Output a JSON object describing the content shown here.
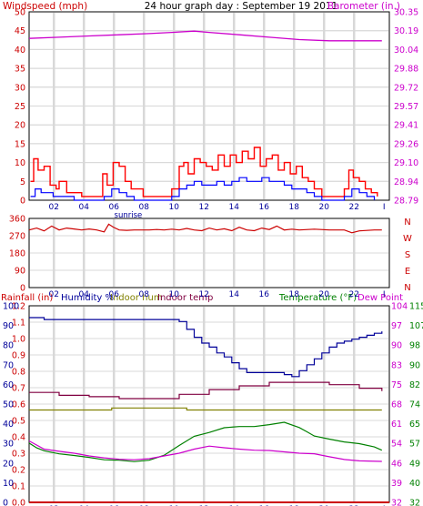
{
  "header": {
    "left_title": "Windspeed (mph)",
    "center_title": "24 hour graph day : September 19 2011",
    "right_title": "Barometer (in.)"
  },
  "legend_lower": {
    "rain": "Rainfall (in)",
    "humidity": "Humidity %",
    "indoor_hum": "Indoor hum",
    "indoor_temp": "Indoor temp",
    "temperature": "Temperature (°F)",
    "dew_point": "Dew Point"
  },
  "colors": {
    "wind": "#ff0000",
    "gust": "#ff0000",
    "avg_wind": "#0000ff",
    "barometer": "#cc00cc",
    "direction": "#cc0000",
    "rain": "#cc0000",
    "humidity": "#000099",
    "indoor_hum": "#808000",
    "indoor_temp": "#800040",
    "temperature": "#008000",
    "dew_point": "#cc00cc",
    "grid": "#d8d8d8"
  },
  "chart_data": [
    {
      "type": "line",
      "name": "Wind and barometer",
      "x_ticks": [
        "02",
        "04",
        "06",
        "08",
        "10",
        "12",
        "14",
        "16",
        "18",
        "20",
        "22",
        "I"
      ],
      "x_note": "sunrise",
      "y_left": {
        "label": "Windspeed (mph)",
        "ylim": [
          0,
          50
        ],
        "ticks": [
          "0",
          "5",
          "10",
          "15",
          "20",
          "25",
          "30",
          "35",
          "40",
          "45",
          "50"
        ]
      },
      "y_right": {
        "label": "Barometer (in.)",
        "ylim": [
          28.79,
          30.35
        ],
        "ticks": [
          "28.79",
          "28.94",
          "29.10",
          "29.26",
          "29.41",
          "29.57",
          "29.72",
          "29.88",
          "30.04",
          "30.19",
          "30.35"
        ]
      },
      "series": [
        {
          "key": "gust",
          "axis": "left",
          "x": [
            0.1,
            0.3,
            0.6,
            1.0,
            1.4,
            1.8,
            2.0,
            2.5,
            3.0,
            3.5,
            4.0,
            4.5,
            4.9,
            5.2,
            5.6,
            6.0,
            6.4,
            6.8,
            7.2,
            7.6,
            8.0,
            8.5,
            9.0,
            9.5,
            10.0,
            10.3,
            10.6,
            11.0,
            11.4,
            11.8,
            12.2,
            12.6,
            13.0,
            13.4,
            13.8,
            14.2,
            14.6,
            15.0,
            15.4,
            15.8,
            16.2,
            16.6,
            17.0,
            17.4,
            17.8,
            18.2,
            18.6,
            19.0,
            19.5,
            20.0,
            20.5,
            21.0,
            21.3,
            21.6,
            22.0,
            22.4,
            22.8,
            23.2
          ],
          "y": [
            5,
            11,
            8,
            9,
            4,
            3,
            5,
            2,
            2,
            1,
            1,
            1,
            7,
            4,
            10,
            9,
            5,
            3,
            3,
            1,
            1,
            1,
            1,
            3,
            9,
            10,
            7,
            11,
            10,
            9,
            8,
            12,
            9,
            12,
            10,
            13,
            11,
            14,
            9,
            11,
            12,
            8,
            10,
            7,
            9,
            6,
            5,
            3,
            1,
            1,
            1,
            3,
            8,
            6,
            5,
            3,
            2,
            1
          ]
        },
        {
          "key": "avg_wind",
          "axis": "left",
          "x": [
            0.1,
            0.4,
            0.8,
            1.2,
            1.6,
            2.0,
            2.5,
            3.0,
            3.5,
            4.0,
            4.5,
            5.0,
            5.5,
            6.0,
            6.5,
            7.0,
            7.5,
            8.0,
            8.5,
            9.0,
            9.5,
            10.0,
            10.5,
            11.0,
            11.5,
            12.0,
            12.5,
            13.0,
            13.5,
            14.0,
            14.5,
            15.0,
            15.5,
            16.0,
            16.5,
            17.0,
            17.5,
            18.0,
            18.5,
            19.0,
            19.5,
            20.0,
            20.5,
            21.0,
            21.5,
            22.0,
            22.5,
            23.0
          ],
          "y": [
            1,
            3,
            2,
            2,
            1,
            1,
            1,
            0,
            0,
            0,
            0,
            1,
            3,
            2,
            1,
            0,
            0,
            0,
            0,
            0,
            1,
            3,
            4,
            5,
            4,
            4,
            5,
            4,
            5,
            6,
            5,
            5,
            6,
            5,
            5,
            4,
            3,
            3,
            2,
            1,
            0,
            0,
            0,
            1,
            3,
            2,
            1,
            0
          ]
        },
        {
          "key": "barometer",
          "axis": "right",
          "x": [
            0,
            2,
            4,
            6,
            8,
            9.5,
            11,
            12,
            14,
            16,
            18,
            20,
            22,
            23.5
          ],
          "y": [
            30.13,
            30.14,
            30.15,
            30.16,
            30.17,
            30.18,
            30.19,
            30.18,
            30.16,
            30.14,
            30.12,
            30.11,
            30.11,
            30.11
          ]
        }
      ]
    },
    {
      "type": "line",
      "name": "Wind direction",
      "x_ticks": [
        "02",
        "04",
        "06",
        "08",
        "10",
        "12",
        "14",
        "16",
        "18",
        "20",
        "22",
        "I"
      ],
      "y_left": {
        "ylim": [
          0,
          360
        ],
        "ticks": [
          "0",
          "90",
          "180",
          "270",
          "360"
        ]
      },
      "y_right_labels": [
        "N",
        "W",
        "S",
        "E",
        "N"
      ],
      "series": [
        {
          "key": "direction",
          "x": [
            0,
            0.5,
            1,
            1.5,
            2,
            2.5,
            3,
            3.5,
            4,
            4.5,
            5,
            5.3,
            5.6,
            6,
            6.5,
            7,
            7.5,
            8,
            8.5,
            9,
            9.5,
            10,
            10.5,
            11,
            11.5,
            12,
            12.5,
            13,
            13.5,
            14,
            14.5,
            15,
            15.5,
            16,
            16.5,
            17,
            17.5,
            18,
            19,
            20,
            21,
            21.5,
            22,
            23,
            23.5
          ],
          "y": [
            300,
            310,
            295,
            320,
            300,
            310,
            305,
            300,
            305,
            300,
            290,
            330,
            315,
            300,
            298,
            300,
            300,
            300,
            302,
            300,
            304,
            300,
            308,
            300,
            296,
            310,
            300,
            306,
            296,
            314,
            300,
            296,
            310,
            302,
            320,
            300,
            304,
            300,
            304,
            300,
            300,
            285,
            295,
            300,
            300
          ]
        }
      ]
    },
    {
      "type": "line",
      "name": "Temperature, humidity and rain",
      "x_ticks": [
        "02",
        "04",
        "06",
        "08",
        "10",
        "12",
        "14",
        "16",
        "18",
        "20",
        "22",
        "I"
      ],
      "x_note": "sunrise",
      "y_left": {
        "label": "Rainfall (in)",
        "ylim": [
          0,
          1.2
        ],
        "ticks": [
          "0.0",
          "0.1",
          "0.2",
          "0.3",
          "0.4",
          "0.5",
          "0.6",
          "0.7",
          "0.8",
          "0.9",
          "1.0",
          "1.1",
          "1.2"
        ]
      },
      "y_left2": {
        "label": "Humidity %",
        "ylim": [
          0,
          100
        ],
        "ticks": [
          "0",
          "10",
          "20",
          "30",
          "40",
          "50",
          "60",
          "70",
          "80",
          "90",
          "100"
        ]
      },
      "y_right": {
        "label": "Temperature (°F)",
        "ticks": [
          "32",
          "40",
          "49",
          "57",
          "65",
          "74",
          "82",
          "90",
          "98",
          "107",
          "115"
        ]
      },
      "y_right2": {
        "ticks": [
          "32",
          "39",
          "46",
          "54",
          "61",
          "68",
          "75",
          "83",
          "90",
          "97",
          "104"
        ]
      },
      "series": [
        {
          "key": "humidity",
          "axis": "humidity",
          "x": [
            0,
            1,
            2,
            3,
            4,
            5,
            6,
            7,
            8,
            9,
            10,
            10.5,
            11,
            11.5,
            12,
            12.5,
            13,
            13.5,
            14,
            14.5,
            15,
            15.5,
            16,
            16.5,
            17,
            17.5,
            18,
            18.5,
            19,
            19.5,
            20,
            20.5,
            21,
            21.5,
            22,
            22.5,
            23,
            23.5
          ],
          "y": [
            94,
            93,
            93,
            93,
            93,
            93,
            93,
            93,
            93,
            93,
            92,
            88,
            84,
            81,
            79,
            76,
            74,
            71,
            68,
            66,
            66,
            66,
            66,
            66,
            65,
            64,
            67,
            70,
            73,
            76,
            79,
            81,
            82,
            83,
            84,
            85,
            86,
            87
          ]
        },
        {
          "key": "indoor_temp",
          "axis": "temperature",
          "x": [
            0,
            2,
            4,
            6,
            8,
            10,
            12,
            14,
            16,
            18,
            20,
            22,
            23.5
          ],
          "y": [
            78.4,
            77.2,
            76.6,
            75.8,
            75.8,
            77.6,
            79.6,
            81.2,
            82.7,
            82.7,
            81.7,
            80.2,
            79.0
          ]
        },
        {
          "key": "indoor_hum",
          "axis": "humidity",
          "x": [
            0,
            2,
            4,
            5.5,
            7,
            9,
            10.5,
            12,
            14,
            16,
            18,
            20,
            22,
            23.5
          ],
          "y": [
            47,
            47,
            47,
            48,
            48,
            48,
            47,
            47,
            47,
            47,
            47,
            47,
            47,
            47
          ]
        },
        {
          "key": "temperature",
          "axis": "temperature",
          "x": [
            0,
            0.5,
            1,
            2,
            3,
            4,
            5,
            6,
            7,
            8,
            9,
            10,
            11,
            12,
            13,
            14,
            15,
            16,
            17,
            18,
            18.5,
            19,
            20,
            21,
            22,
            23,
            23.5
          ],
          "y": [
            57.0,
            55.0,
            53.8,
            52.5,
            51.8,
            51.0,
            50.0,
            49.8,
            49.2,
            49.8,
            51.9,
            56.0,
            59.9,
            61.5,
            63.5,
            64.0,
            64.0,
            64.8,
            65.8,
            63.6,
            61.8,
            60.0,
            58.7,
            57.5,
            56.8,
            55.4,
            54.0
          ]
        },
        {
          "key": "dew_point",
          "axis": "dew",
          "x": [
            0,
            1,
            2,
            3,
            4,
            5,
            6,
            7,
            8,
            9,
            10,
            11,
            12,
            13,
            14,
            15,
            16,
            17,
            18,
            19,
            20,
            21,
            22,
            23.5
          ],
          "y": [
            54.5,
            51.5,
            50.7,
            50.0,
            49.0,
            48.3,
            47.8,
            47.6,
            48.0,
            49.0,
            50.0,
            51.5,
            52.6,
            52.0,
            51.5,
            51.1,
            51.0,
            50.5,
            50.0,
            49.8,
            48.7,
            47.7,
            47.2,
            47.0
          ]
        },
        {
          "key": "rain",
          "axis": "rain",
          "x": [
            0,
            24
          ],
          "y": [
            0.0,
            0.0
          ]
        }
      ]
    }
  ]
}
